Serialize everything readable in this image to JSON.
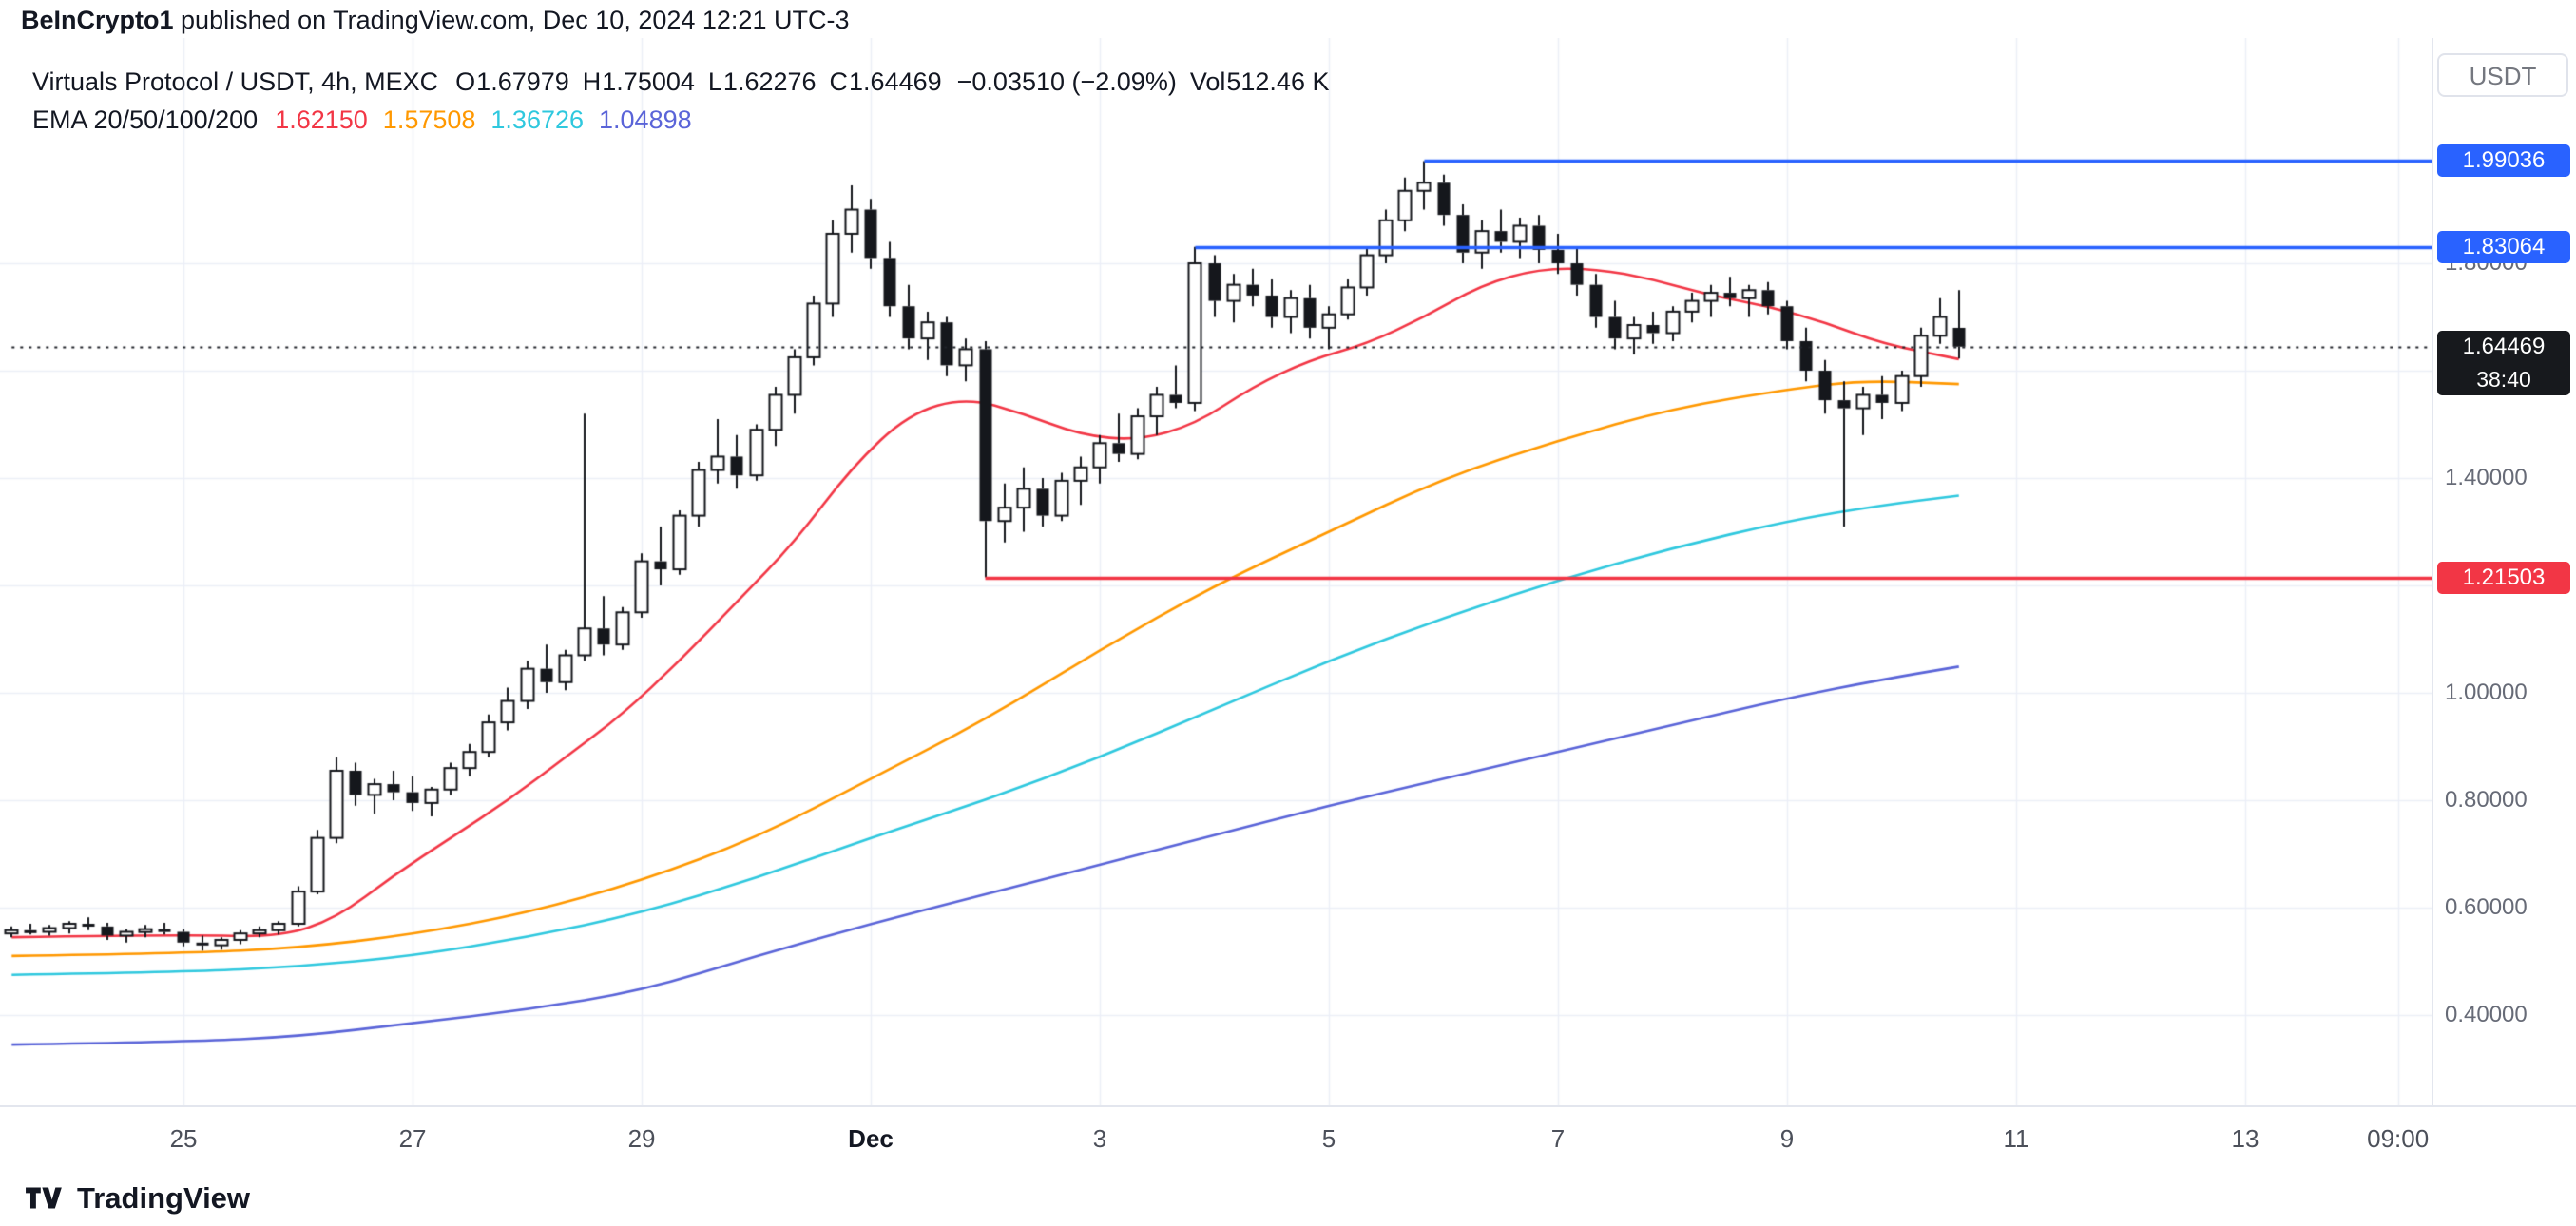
{
  "header": {
    "user": "BeInCrypto1",
    "rest": " published on TradingView.com, Dec 10, 2024 12:21 UTC-3"
  },
  "legend": {
    "symbol": "Virtuals Protocol / USDT, 4h, MEXC",
    "o_label": "O",
    "o": "1.67979",
    "h_label": "H",
    "h": "1.75004",
    "l_label": "L",
    "l": "1.62276",
    "c_label": "C",
    "c": "1.64469",
    "change": "−0.03510 (−2.09%)",
    "vol_label": "Vol",
    "vol": "512.46 K",
    "ema_title": "EMA 20/50/100/200"
  },
  "axis": {
    "currency_button": "USDT"
  },
  "footer": {
    "brand": "TradingView"
  },
  "chart_data": {
    "type": "candlestick",
    "title": "Virtuals Protocol / USDT, 4h, MEXC",
    "interval": "4h",
    "exchange": "MEXC",
    "colors": {
      "up": "#ffffff",
      "down": "#15171c",
      "grid": "#eceff7",
      "last_badge": "#17191d",
      "blue": "#2962ff",
      "red": "#f23645"
    },
    "price_range": {
      "top": 2.2195,
      "bottom": 0.232
    },
    "grid_prices": [
      0.4,
      0.6,
      0.8,
      1.0,
      1.2,
      1.4,
      1.6,
      1.8
    ],
    "y_ticks": [
      {
        "label": "1.80000",
        "price": 1.8
      },
      {
        "label": "1.40000",
        "price": 1.4
      },
      {
        "label": "1.00000",
        "price": 1.0
      },
      {
        "label": "0.80000",
        "price": 0.8
      },
      {
        "label": "0.60000",
        "price": 0.6
      },
      {
        "label": "0.40000",
        "price": 0.4
      }
    ],
    "x_ticks": [
      {
        "label": "25",
        "i": 9
      },
      {
        "label": "27",
        "i": 21
      },
      {
        "label": "29",
        "i": 33
      },
      {
        "label": "Dec",
        "i": 45,
        "major": true
      },
      {
        "label": "3",
        "i": 57
      },
      {
        "label": "5",
        "i": 69
      },
      {
        "label": "7",
        "i": 81
      },
      {
        "label": "9",
        "i": 93
      },
      {
        "label": "11",
        "i": 105
      },
      {
        "label": "13",
        "i": 117
      },
      {
        "label": "09:00",
        "i": 125
      }
    ],
    "rays": [
      {
        "price": 1.99036,
        "from_index": 74,
        "color": "#2962ff",
        "style": "solid",
        "label": "1.99036"
      },
      {
        "price": 1.83064,
        "from_index": 62,
        "color": "#2962ff",
        "style": "solid",
        "label": "1.83064"
      },
      {
        "price": 1.21503,
        "from_index": 51,
        "color": "#f23645",
        "style": "solid",
        "label": "1.21503"
      },
      {
        "price": 1.64469,
        "from_index": 0,
        "color": "#20232a",
        "style": "dotted"
      }
    ],
    "current_price": {
      "label": "1.64469",
      "price": 1.64469,
      "countdown": "38:40"
    },
    "emas": [
      {
        "name": "EMA 20",
        "value": "1.62150",
        "color": "#f23645",
        "points": [
          [
            0,
            0.545
          ],
          [
            9,
            0.55
          ],
          [
            14,
            0.545
          ],
          [
            17,
            0.58
          ],
          [
            20,
            0.66
          ],
          [
            23,
            0.73
          ],
          [
            26,
            0.8
          ],
          [
            29,
            0.88
          ],
          [
            32,
            0.96
          ],
          [
            35,
            1.06
          ],
          [
            38,
            1.17
          ],
          [
            41,
            1.28
          ],
          [
            44,
            1.42
          ],
          [
            47,
            1.52
          ],
          [
            50,
            1.55
          ],
          [
            53,
            1.52
          ],
          [
            56,
            1.48
          ],
          [
            59,
            1.47
          ],
          [
            62,
            1.5
          ],
          [
            65,
            1.57
          ],
          [
            68,
            1.62
          ],
          [
            71,
            1.65
          ],
          [
            74,
            1.7
          ],
          [
            77,
            1.76
          ],
          [
            80,
            1.79
          ],
          [
            83,
            1.79
          ],
          [
            86,
            1.77
          ],
          [
            89,
            1.74
          ],
          [
            92,
            1.72
          ],
          [
            95,
            1.69
          ],
          [
            98,
            1.65
          ],
          [
            102,
            1.6215
          ]
        ]
      },
      {
        "name": "EMA 50",
        "value": "1.57508",
        "color": "#ff9800",
        "points": [
          [
            0,
            0.51
          ],
          [
            9,
            0.515
          ],
          [
            15,
            0.525
          ],
          [
            21,
            0.55
          ],
          [
            27,
            0.59
          ],
          [
            33,
            0.65
          ],
          [
            39,
            0.73
          ],
          [
            45,
            0.84
          ],
          [
            51,
            0.95
          ],
          [
            57,
            1.08
          ],
          [
            63,
            1.2
          ],
          [
            69,
            1.3
          ],
          [
            75,
            1.4
          ],
          [
            81,
            1.47
          ],
          [
            87,
            1.53
          ],
          [
            93,
            1.565
          ],
          [
            97,
            1.582
          ],
          [
            102,
            1.57508
          ]
        ]
      },
      {
        "name": "EMA 100",
        "value": "1.36726",
        "color": "#2fc8de",
        "points": [
          [
            0,
            0.475
          ],
          [
            9,
            0.48
          ],
          [
            15,
            0.49
          ],
          [
            21,
            0.51
          ],
          [
            27,
            0.545
          ],
          [
            33,
            0.59
          ],
          [
            39,
            0.655
          ],
          [
            45,
            0.73
          ],
          [
            51,
            0.8
          ],
          [
            57,
            0.88
          ],
          [
            63,
            0.97
          ],
          [
            69,
            1.06
          ],
          [
            75,
            1.14
          ],
          [
            81,
            1.21
          ],
          [
            87,
            1.27
          ],
          [
            93,
            1.32
          ],
          [
            98,
            1.35
          ],
          [
            102,
            1.36726
          ]
        ]
      },
      {
        "name": "EMA 200",
        "value": "1.04898",
        "color": "#5a64d8",
        "points": [
          [
            0,
            0.345
          ],
          [
            9,
            0.35
          ],
          [
            15,
            0.36
          ],
          [
            21,
            0.385
          ],
          [
            27,
            0.41
          ],
          [
            33,
            0.445
          ],
          [
            39,
            0.51
          ],
          [
            45,
            0.57
          ],
          [
            51,
            0.625
          ],
          [
            57,
            0.68
          ],
          [
            63,
            0.735
          ],
          [
            69,
            0.79
          ],
          [
            75,
            0.84
          ],
          [
            81,
            0.89
          ],
          [
            87,
            0.94
          ],
          [
            93,
            0.99
          ],
          [
            98,
            1.025
          ],
          [
            102,
            1.049
          ]
        ]
      }
    ],
    "ohlc": [
      [
        0.552,
        0.565,
        0.545,
        0.558
      ],
      [
        0.558,
        0.57,
        0.55,
        0.555
      ],
      [
        0.555,
        0.568,
        0.548,
        0.562
      ],
      [
        0.562,
        0.575,
        0.552,
        0.57
      ],
      [
        0.57,
        0.582,
        0.558,
        0.565
      ],
      [
        0.565,
        0.572,
        0.54,
        0.548
      ],
      [
        0.548,
        0.56,
        0.535,
        0.555
      ],
      [
        0.555,
        0.568,
        0.545,
        0.56
      ],
      [
        0.56,
        0.572,
        0.55,
        0.555
      ],
      [
        0.555,
        0.56,
        0.528,
        0.535
      ],
      [
        0.535,
        0.548,
        0.52,
        0.53
      ],
      [
        0.53,
        0.545,
        0.522,
        0.54
      ],
      [
        0.54,
        0.558,
        0.532,
        0.552
      ],
      [
        0.552,
        0.565,
        0.545,
        0.558
      ],
      [
        0.558,
        0.575,
        0.55,
        0.57
      ],
      [
        0.57,
        0.64,
        0.565,
        0.63
      ],
      [
        0.63,
        0.745,
        0.625,
        0.73
      ],
      [
        0.73,
        0.88,
        0.72,
        0.855
      ],
      [
        0.855,
        0.87,
        0.79,
        0.81
      ],
      [
        0.81,
        0.84,
        0.775,
        0.83
      ],
      [
        0.83,
        0.855,
        0.8,
        0.815
      ],
      [
        0.815,
        0.845,
        0.78,
        0.795
      ],
      [
        0.795,
        0.825,
        0.77,
        0.82
      ],
      [
        0.82,
        0.87,
        0.81,
        0.86
      ],
      [
        0.86,
        0.905,
        0.845,
        0.89
      ],
      [
        0.89,
        0.96,
        0.88,
        0.945
      ],
      [
        0.945,
        1.01,
        0.93,
        0.985
      ],
      [
        0.985,
        1.06,
        0.97,
        1.045
      ],
      [
        1.045,
        1.09,
        1.0,
        1.02
      ],
      [
        1.02,
        1.08,
        1.005,
        1.07
      ],
      [
        1.07,
        1.52,
        1.06,
        1.12
      ],
      [
        1.12,
        1.18,
        1.07,
        1.09
      ],
      [
        1.09,
        1.16,
        1.08,
        1.15
      ],
      [
        1.15,
        1.26,
        1.14,
        1.245
      ],
      [
        1.245,
        1.31,
        1.2,
        1.23
      ],
      [
        1.23,
        1.34,
        1.22,
        1.33
      ],
      [
        1.33,
        1.43,
        1.31,
        1.415
      ],
      [
        1.415,
        1.51,
        1.39,
        1.44
      ],
      [
        1.44,
        1.48,
        1.38,
        1.405
      ],
      [
        1.405,
        1.5,
        1.395,
        1.49
      ],
      [
        1.49,
        1.57,
        1.46,
        1.555
      ],
      [
        1.555,
        1.64,
        1.52,
        1.625
      ],
      [
        1.625,
        1.74,
        1.61,
        1.725
      ],
      [
        1.725,
        1.88,
        1.7,
        1.855
      ],
      [
        1.855,
        1.945,
        1.82,
        1.9
      ],
      [
        1.9,
        1.92,
        1.79,
        1.81
      ],
      [
        1.81,
        1.84,
        1.7,
        1.72
      ],
      [
        1.72,
        1.76,
        1.64,
        1.66
      ],
      [
        1.66,
        1.71,
        1.62,
        1.69
      ],
      [
        1.69,
        1.7,
        1.59,
        1.61
      ],
      [
        1.61,
        1.66,
        1.58,
        1.64
      ],
      [
        1.64,
        1.655,
        1.21503,
        1.32
      ],
      [
        1.32,
        1.39,
        1.28,
        1.345
      ],
      [
        1.345,
        1.42,
        1.3,
        1.38
      ],
      [
        1.38,
        1.4,
        1.31,
        1.33
      ],
      [
        1.33,
        1.41,
        1.32,
        1.395
      ],
      [
        1.395,
        1.44,
        1.35,
        1.42
      ],
      [
        1.42,
        1.48,
        1.39,
        1.465
      ],
      [
        1.465,
        1.52,
        1.43,
        1.445
      ],
      [
        1.445,
        1.53,
        1.435,
        1.515
      ],
      [
        1.515,
        1.57,
        1.48,
        1.555
      ],
      [
        1.555,
        1.61,
        1.53,
        1.54
      ],
      [
        1.54,
        1.83064,
        1.525,
        1.8
      ],
      [
        1.8,
        1.815,
        1.7,
        1.73
      ],
      [
        1.73,
        1.78,
        1.69,
        1.76
      ],
      [
        1.76,
        1.79,
        1.72,
        1.74
      ],
      [
        1.74,
        1.77,
        1.68,
        1.7
      ],
      [
        1.7,
        1.75,
        1.67,
        1.735
      ],
      [
        1.735,
        1.76,
        1.66,
        1.68
      ],
      [
        1.68,
        1.72,
        1.64,
        1.705
      ],
      [
        1.705,
        1.77,
        1.695,
        1.755
      ],
      [
        1.755,
        1.83,
        1.74,
        1.815
      ],
      [
        1.815,
        1.9,
        1.8,
        1.88
      ],
      [
        1.88,
        1.96,
        1.86,
        1.935
      ],
      [
        1.935,
        1.99036,
        1.9,
        1.95
      ],
      [
        1.95,
        1.965,
        1.87,
        1.89
      ],
      [
        1.89,
        1.91,
        1.8,
        1.82
      ],
      [
        1.82,
        1.88,
        1.79,
        1.86
      ],
      [
        1.86,
        1.9,
        1.82,
        1.84
      ],
      [
        1.84,
        1.885,
        1.81,
        1.87
      ],
      [
        1.87,
        1.89,
        1.8,
        1.825
      ],
      [
        1.825,
        1.855,
        1.78,
        1.8
      ],
      [
        1.8,
        1.83,
        1.74,
        1.76
      ],
      [
        1.76,
        1.78,
        1.68,
        1.7
      ],
      [
        1.7,
        1.73,
        1.64,
        1.66
      ],
      [
        1.66,
        1.7,
        1.63,
        1.685
      ],
      [
        1.685,
        1.71,
        1.65,
        1.67
      ],
      [
        1.67,
        1.72,
        1.655,
        1.71
      ],
      [
        1.71,
        1.745,
        1.69,
        1.73
      ],
      [
        1.73,
        1.76,
        1.7,
        1.745
      ],
      [
        1.745,
        1.775,
        1.72,
        1.735
      ],
      [
        1.735,
        1.76,
        1.7,
        1.75
      ],
      [
        1.75,
        1.765,
        1.705,
        1.72
      ],
      [
        1.72,
        1.73,
        1.64,
        1.655
      ],
      [
        1.655,
        1.68,
        1.58,
        1.6
      ],
      [
        1.6,
        1.62,
        1.52,
        1.545
      ],
      [
        1.545,
        1.58,
        1.31,
        1.53
      ],
      [
        1.53,
        1.57,
        1.48,
        1.555
      ],
      [
        1.555,
        1.59,
        1.51,
        1.54
      ],
      [
        1.54,
        1.6,
        1.525,
        1.59
      ],
      [
        1.59,
        1.68,
        1.57,
        1.665
      ],
      [
        1.665,
        1.735,
        1.65,
        1.7
      ],
      [
        1.67979,
        1.75004,
        1.62276,
        1.64469
      ]
    ]
  }
}
